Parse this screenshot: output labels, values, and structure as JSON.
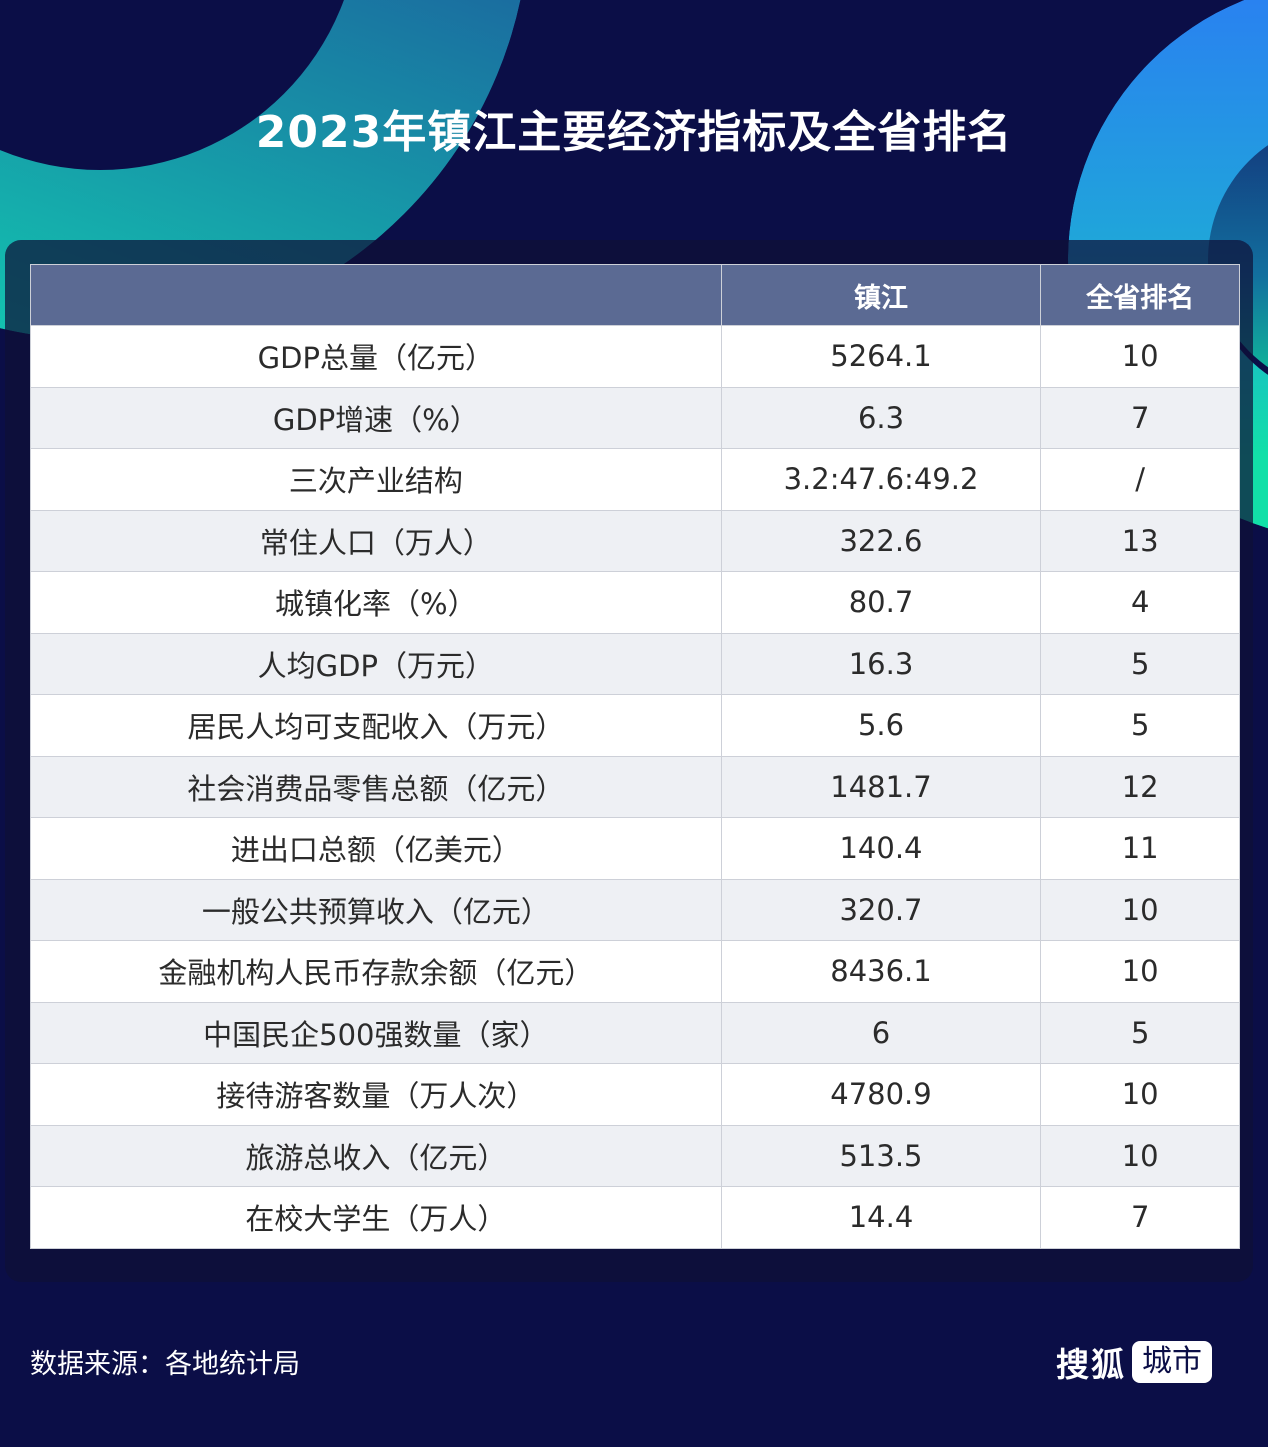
{
  "title": "2023年镇江主要经济指标及全省排名",
  "colors": {
    "background": "#0b0e47",
    "header_bg": "#5b6a93",
    "row_alt_bg": "#eef0f4",
    "accent_teal": "#12e0a8",
    "accent_blue": "#2a7ff2"
  },
  "table": {
    "headers": [
      "",
      "镇江",
      "全省排名"
    ],
    "rows": [
      {
        "indicator": "GDP总量（亿元）",
        "value": "5264.1",
        "rank": "10"
      },
      {
        "indicator": "GDP增速（%）",
        "value": "6.3",
        "rank": "7"
      },
      {
        "indicator": "三次产业结构",
        "value": "3.2:47.6:49.2",
        "rank": "/"
      },
      {
        "indicator": "常住人口（万人）",
        "value": "322.6",
        "rank": "13"
      },
      {
        "indicator": "城镇化率（%）",
        "value": "80.7",
        "rank": "4"
      },
      {
        "indicator": "人均GDP（万元）",
        "value": "16.3",
        "rank": "5"
      },
      {
        "indicator": "居民人均可支配收入（万元）",
        "value": "5.6",
        "rank": "5"
      },
      {
        "indicator": "社会消费品零售总额（亿元）",
        "value": "1481.7",
        "rank": "12"
      },
      {
        "indicator": "进出口总额（亿美元）",
        "value": "140.4",
        "rank": "11"
      },
      {
        "indicator": "一般公共预算收入（亿元）",
        "value": "320.7",
        "rank": "10"
      },
      {
        "indicator": "金融机构人民币存款余额（亿元）",
        "value": "8436.1",
        "rank": "10"
      },
      {
        "indicator": "中国民企500强数量（家）",
        "value": "6",
        "rank": "5"
      },
      {
        "indicator": "接待游客数量（万人次）",
        "value": "4780.9",
        "rank": "10"
      },
      {
        "indicator": "旅游总收入（亿元）",
        "value": "513.5",
        "rank": "10"
      },
      {
        "indicator": "在校大学生（万人）",
        "value": "14.4",
        "rank": "7"
      }
    ]
  },
  "footer": {
    "source": "数据来源：各地统计局",
    "logo_main": "搜狐",
    "logo_badge": "城市"
  }
}
